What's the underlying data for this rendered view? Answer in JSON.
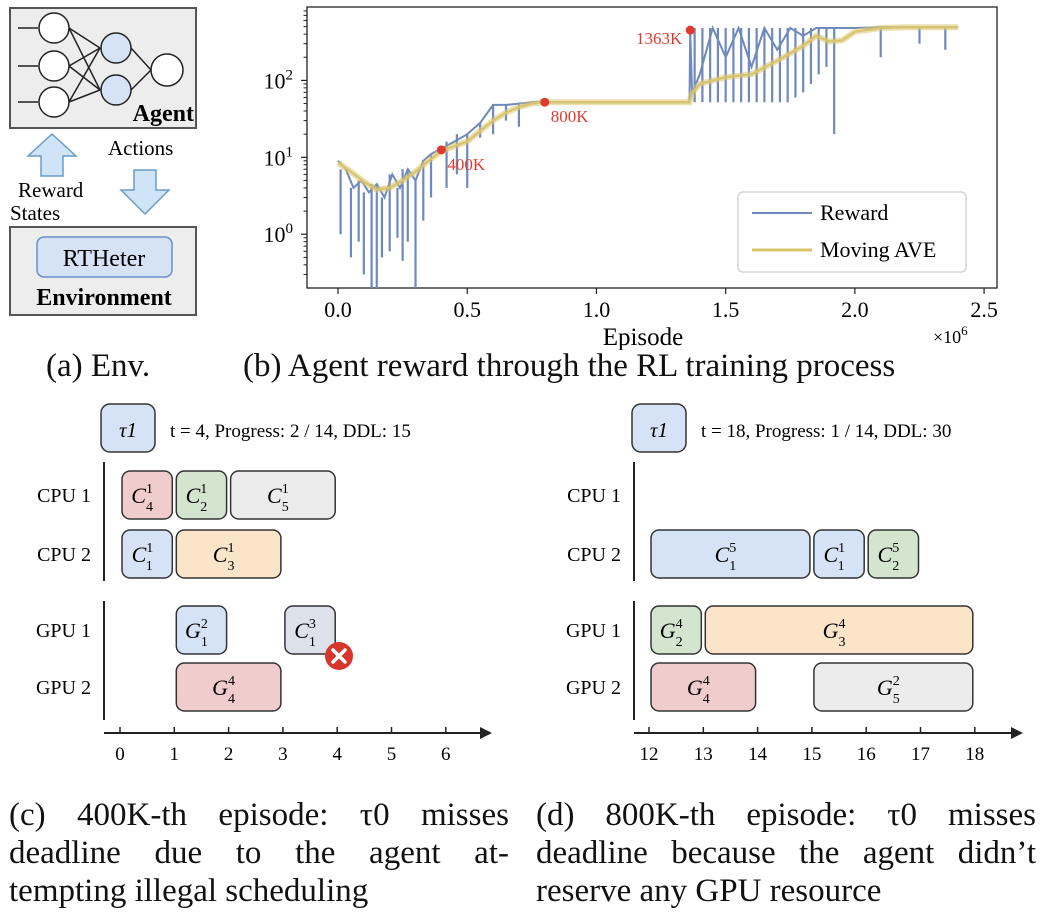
{
  "colors": {
    "reward": "#6f89bd",
    "moving_ave": "#d9c46e",
    "marker": "#e03a2f",
    "node_white": "#ffffff",
    "node_blue": "#d6e3f7",
    "arrow_blue": "#cfe4f6",
    "env_box": "#ededed",
    "c_red": "#f1cccc",
    "c_green": "#d3e5cf",
    "c_gray": "#ececec",
    "c_blue": "#d6e3f7",
    "c_orange": "#fbe5c9",
    "g_gray": "#dde2ea"
  },
  "panel_a": {
    "agent_label": "Agent",
    "actions_label": "Actions",
    "reward_label": "Reward",
    "states_label": "States",
    "env_inner_label": "RTHeter",
    "env_label": "Environment",
    "caption": "(a) Env."
  },
  "panel_b": {
    "caption": "(b) Agent reward through the RL training process"
  },
  "chart_data": {
    "type": "line",
    "xlabel": "Episode",
    "x_multiplier": "×10^6",
    "ylabel": "",
    "yscale": "log",
    "xlim": [
      -0.12,
      2.55
    ],
    "ylim": [
      0.2,
      900
    ],
    "xticks": [
      0.0,
      0.5,
      1.0,
      1.5,
      2.0,
      2.5
    ],
    "xtick_labels": [
      "0.0",
      "0.5",
      "1.0",
      "1.5",
      "2.0",
      "2.5"
    ],
    "yticks": [
      1,
      10,
      100
    ],
    "ytick_labels": [
      "10^0",
      "10^1",
      "10^2"
    ],
    "legend": {
      "position": "lower-right",
      "entries": [
        "Reward",
        "Moving AVE"
      ]
    },
    "series": [
      {
        "name": "Moving AVE",
        "x": [
          0.0,
          0.05,
          0.1,
          0.15,
          0.2,
          0.25,
          0.3,
          0.35,
          0.4,
          0.45,
          0.5,
          0.55,
          0.6,
          0.65,
          0.7,
          0.75,
          0.8,
          0.9,
          1.0,
          1.1,
          1.2,
          1.3,
          1.36,
          1.37,
          1.4,
          1.5,
          1.6,
          1.7,
          1.8,
          1.85,
          1.9,
          1.95,
          2.0,
          2.1,
          2.2,
          2.3,
          2.4
        ],
        "y": [
          8.5,
          6.5,
          4.8,
          3.8,
          4.0,
          5.0,
          6.5,
          9.0,
          12.0,
          14.0,
          16.0,
          22.0,
          30.0,
          38.0,
          45.0,
          50.0,
          52.0,
          52.0,
          52.0,
          52.0,
          52.0,
          52.0,
          52.0,
          68.0,
          90.0,
          110.0,
          120.0,
          180.0,
          280.0,
          380.0,
          320.0,
          330.0,
          430.0,
          480.0,
          490.0,
          490.0,
          490.0
        ]
      },
      {
        "name": "Reward",
        "x": [
          0.0,
          0.03,
          0.06,
          0.09,
          0.12,
          0.15,
          0.18,
          0.21,
          0.24,
          0.27,
          0.3,
          0.33,
          0.36,
          0.4,
          0.45,
          0.5,
          0.55,
          0.6,
          0.65,
          0.7,
          0.75,
          0.8,
          1.0,
          1.36,
          1.363,
          1.37,
          1.4,
          1.45,
          1.5,
          1.55,
          1.6,
          1.65,
          1.7,
          1.75,
          1.8,
          1.85,
          1.9,
          1.95,
          2.0,
          2.1,
          2.2,
          2.3,
          2.4
        ],
        "y": [
          9.0,
          7.0,
          4.0,
          5.0,
          3.5,
          4.5,
          3.0,
          6.0,
          4.0,
          7.0,
          5.0,
          9.0,
          11.0,
          13.0,
          16.0,
          20.0,
          28.0,
          48.0,
          48.0,
          50.0,
          52.0,
          52.0,
          52.0,
          52.0,
          450.0,
          68.0,
          120.0,
          480.0,
          200.0,
          480.0,
          150.0,
          480.0,
          250.0,
          480.0,
          380.0,
          480.0,
          480.0,
          480.0,
          480.0,
          490.0,
          490.0,
          490.0,
          490.0
        ]
      }
    ],
    "dips": [
      {
        "x": 0.01,
        "y": 1.0
      },
      {
        "x": 0.05,
        "y": 0.5
      },
      {
        "x": 0.08,
        "y": 0.8
      },
      {
        "x": 0.1,
        "y": 0.3
      },
      {
        "x": 0.13,
        "y": 0.2
      },
      {
        "x": 0.15,
        "y": 0.2
      },
      {
        "x": 0.17,
        "y": 0.5
      },
      {
        "x": 0.2,
        "y": 0.6
      },
      {
        "x": 0.23,
        "y": 0.9
      },
      {
        "x": 0.25,
        "y": 0.45
      },
      {
        "x": 0.27,
        "y": 0.8
      },
      {
        "x": 0.3,
        "y": 0.2
      },
      {
        "x": 0.33,
        "y": 1.5
      },
      {
        "x": 0.36,
        "y": 3.0
      },
      {
        "x": 0.42,
        "y": 4.0
      },
      {
        "x": 0.46,
        "y": 6.0
      },
      {
        "x": 0.5,
        "y": 4.0
      },
      {
        "x": 0.55,
        "y": 18.0
      },
      {
        "x": 0.6,
        "y": 20.0
      },
      {
        "x": 0.65,
        "y": 30.0
      },
      {
        "x": 0.7,
        "y": 25.0
      },
      {
        "x": 1.38,
        "y": 52.0
      },
      {
        "x": 1.41,
        "y": 52.0
      },
      {
        "x": 1.44,
        "y": 52.0
      },
      {
        "x": 1.47,
        "y": 52.0
      },
      {
        "x": 1.5,
        "y": 52.0
      },
      {
        "x": 1.53,
        "y": 52.0
      },
      {
        "x": 1.56,
        "y": 52.0
      },
      {
        "x": 1.59,
        "y": 52.0
      },
      {
        "x": 1.62,
        "y": 52.0
      },
      {
        "x": 1.65,
        "y": 52.0
      },
      {
        "x": 1.68,
        "y": 52.0
      },
      {
        "x": 1.71,
        "y": 52.0
      },
      {
        "x": 1.74,
        "y": 52.0
      },
      {
        "x": 1.77,
        "y": 60.0
      },
      {
        "x": 1.8,
        "y": 70.0
      },
      {
        "x": 1.83,
        "y": 90.0
      },
      {
        "x": 1.86,
        "y": 120.0
      },
      {
        "x": 1.89,
        "y": 150.0
      },
      {
        "x": 1.92,
        "y": 20.0
      },
      {
        "x": 2.1,
        "y": 200.0
      },
      {
        "x": 2.25,
        "y": 300.0
      },
      {
        "x": 2.35,
        "y": 250.0
      }
    ],
    "annotations": [
      {
        "label": "400K",
        "x": 0.4,
        "y": 12.5
      },
      {
        "label": "800K",
        "x": 0.8,
        "y": 52.0
      },
      {
        "label": "1363K",
        "x": 1.363,
        "y": 450.0
      }
    ]
  },
  "panel_c": {
    "task_label": "τ1",
    "status_text": "t = 4, Progress: 2 / 14, DDL: 15",
    "rows": [
      "CPU 1",
      "CPU 2",
      "GPU 1",
      "GPU 2"
    ],
    "axis_ticks": [
      "0",
      "1",
      "2",
      "3",
      "4",
      "5",
      "6"
    ],
    "blocks": [
      {
        "row": 0,
        "start": 0,
        "end": 1,
        "base": "C",
        "sub": "4",
        "sup": "1",
        "color": "c_red"
      },
      {
        "row": 0,
        "start": 1,
        "end": 2,
        "base": "C",
        "sub": "2",
        "sup": "1",
        "color": "c_green"
      },
      {
        "row": 0,
        "start": 2,
        "end": 4,
        "base": "C",
        "sub": "5",
        "sup": "1",
        "color": "c_gray"
      },
      {
        "row": 1,
        "start": 0,
        "end": 1,
        "base": "C",
        "sub": "1",
        "sup": "1",
        "color": "c_blue"
      },
      {
        "row": 1,
        "start": 1,
        "end": 3,
        "base": "C",
        "sub": "3",
        "sup": "1",
        "color": "c_orange"
      },
      {
        "row": 2,
        "start": 1,
        "end": 2,
        "base": "G",
        "sub": "1",
        "sup": "2",
        "color": "c_blue"
      },
      {
        "row": 2,
        "start": 3,
        "end": 4,
        "base": "C",
        "sub": "1",
        "sup": "3",
        "color": "g_gray"
      },
      {
        "row": 3,
        "start": 1,
        "end": 3,
        "base": "G",
        "sub": "4",
        "sup": "4",
        "color": "c_red"
      }
    ],
    "caption_lines": [
      "(c) 400K-th episode: τ0 misses",
      "deadline due to the agent at-",
      "tempting illegal scheduling"
    ]
  },
  "panel_d": {
    "task_label": "τ1",
    "status_text": "t = 18, Progress: 1 / 14, DDL: 30",
    "rows": [
      "CPU 1",
      "CPU 2",
      "GPU 1",
      "GPU 2"
    ],
    "axis_ticks": [
      "12",
      "13",
      "14",
      "15",
      "16",
      "17",
      "18"
    ],
    "blocks": [
      {
        "row": 1,
        "start": 12,
        "end": 15,
        "base": "C",
        "sub": "1",
        "sup": "5",
        "color": "c_blue"
      },
      {
        "row": 1,
        "start": 15,
        "end": 16,
        "base": "C",
        "sub": "1",
        "sup": "1",
        "color": "c_blue"
      },
      {
        "row": 1,
        "start": 16,
        "end": 17,
        "base": "C",
        "sub": "2",
        "sup": "5",
        "color": "c_green"
      },
      {
        "row": 2,
        "start": 12,
        "end": 13,
        "base": "G",
        "sub": "2",
        "sup": "4",
        "color": "c_green"
      },
      {
        "row": 2,
        "start": 13,
        "end": 18,
        "base": "G",
        "sub": "3",
        "sup": "4",
        "color": "c_orange"
      },
      {
        "row": 3,
        "start": 12,
        "end": 14,
        "base": "G",
        "sub": "4",
        "sup": "4",
        "color": "c_red"
      },
      {
        "row": 3,
        "start": 15,
        "end": 18,
        "base": "G",
        "sub": "5",
        "sup": "2",
        "color": "c_gray"
      }
    ],
    "caption_lines": [
      "(d) 800K-th episode: τ0 misses",
      "deadline because the agent didn’t",
      "reserve any GPU resource"
    ]
  }
}
